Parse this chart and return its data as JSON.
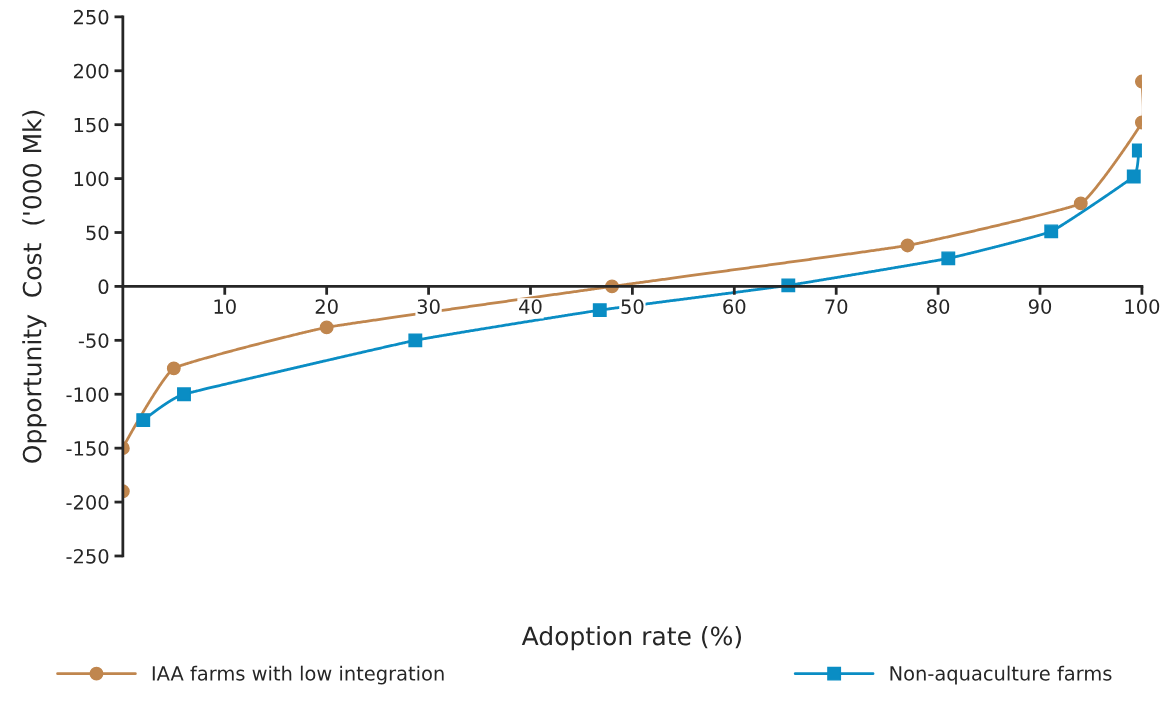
{
  "chart_data": {
    "type": "line",
    "xlabel": "Adoption rate (%)",
    "ylabel": "Opportunity  Cost  ('000 Mk)",
    "xlim": [
      0,
      100
    ],
    "ylim": [
      -250,
      250
    ],
    "xticks": [
      10,
      20,
      30,
      40,
      50,
      60,
      70,
      80,
      90,
      100
    ],
    "yticks": [
      -250,
      -200,
      -150,
      -100,
      -50,
      0,
      50,
      100,
      150,
      200,
      250
    ],
    "grid": false,
    "legend": "bottom",
    "series": [
      {
        "name": "IAA farms with low integration",
        "color": "#c0864e",
        "marker": "circle",
        "x": [
          0,
          0,
          5,
          20,
          48,
          77,
          94,
          100,
          100
        ],
        "values": [
          -190,
          -150,
          -76,
          -38,
          0,
          38,
          77,
          152,
          190
        ]
      },
      {
        "name": "Non-aquaculture farms",
        "color": "#0a8dc4",
        "marker": "square",
        "x": [
          2,
          6,
          28.7,
          46.8,
          65.3,
          81,
          91.1,
          99.2,
          99.7
        ],
        "values": [
          -124,
          -100,
          -50,
          -22,
          1,
          26,
          51,
          102,
          126
        ]
      }
    ]
  }
}
